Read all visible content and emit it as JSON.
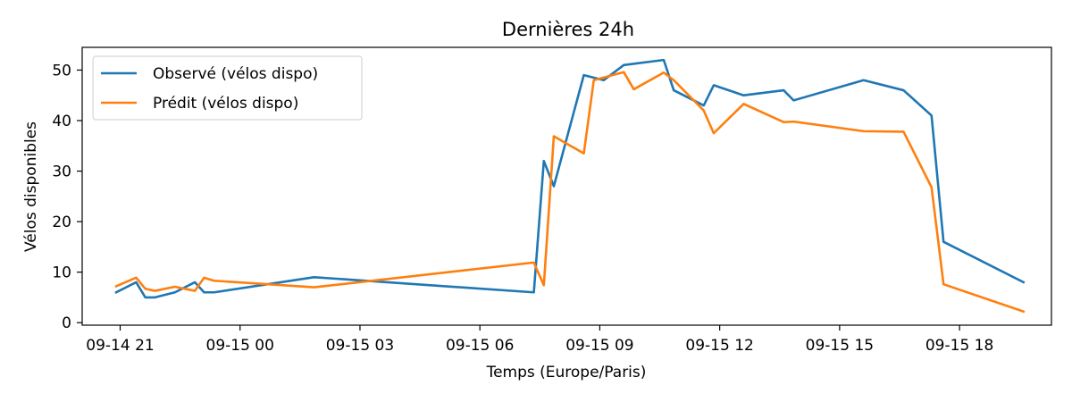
{
  "chart_data": {
    "type": "line",
    "title": "Dernières 24h",
    "xlabel": "Temps (Europe/Paris)",
    "ylabel": "Vélos disponibles",
    "x_tick_labels": [
      "09-14 21",
      "09-15 00",
      "09-15 03",
      "09-15 06",
      "09-15 09",
      "09-15 12",
      "09-15 15",
      "09-15 18"
    ],
    "x_ticks_hours": [
      21,
      24,
      27,
      30,
      33,
      36,
      39,
      42
    ],
    "y_ticks": [
      0,
      10,
      20,
      30,
      40,
      50
    ],
    "xlim_hours": [
      20.05,
      44.3
    ],
    "ylim": [
      -0.5,
      54.5
    ],
    "grid": false,
    "legend_position": "upper-left",
    "series": [
      {
        "name": "Observé (vélos dispo)",
        "color": "#1f77b4",
        "x_hours": [
          20.9,
          21.4,
          21.63,
          21.87,
          22.37,
          22.87,
          23.1,
          23.35,
          25.85,
          31.35,
          31.6,
          31.85,
          32.6,
          33.1,
          33.6,
          34.6,
          34.85,
          35.6,
          35.85,
          36.6,
          37.6,
          37.85,
          39.6,
          40.6,
          41.3,
          41.6,
          43.6
        ],
        "values": [
          6,
          8,
          5,
          5,
          6,
          8,
          6,
          6,
          9,
          6,
          32,
          27,
          49,
          48,
          51,
          52,
          46,
          43,
          47,
          45,
          46,
          44,
          48,
          46,
          41,
          16,
          8
        ]
      },
      {
        "name": "Prédit (vélos dispo)",
        "color": "#ff7f0e",
        "x_hours": [
          20.9,
          21.4,
          21.63,
          21.87,
          22.37,
          22.87,
          23.1,
          23.35,
          25.85,
          31.35,
          31.6,
          31.85,
          32.6,
          32.85,
          33.6,
          33.85,
          34.6,
          34.85,
          35.6,
          35.85,
          36.6,
          37.6,
          37.85,
          39.6,
          40.6,
          41.3,
          41.6,
          43.6
        ],
        "values": [
          7.2,
          8.9,
          6.7,
          6.3,
          7.1,
          6.3,
          8.9,
          8.3,
          7.0,
          11.9,
          7.4,
          36.9,
          33.5,
          48.0,
          49.6,
          46.2,
          49.5,
          48.0,
          42.0,
          37.5,
          43.3,
          39.7,
          39.8,
          37.9,
          37.8,
          26.8,
          7.6,
          2.2
        ]
      }
    ]
  }
}
